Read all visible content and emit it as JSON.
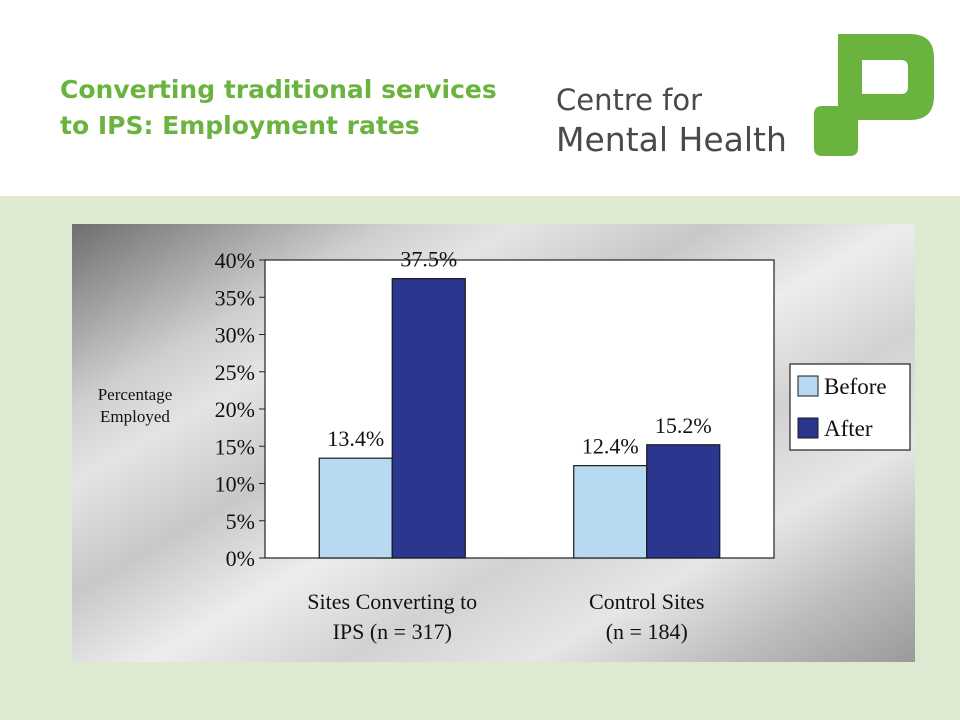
{
  "header": {
    "title_line1": "Converting traditional services",
    "title_line2": "to IPS: Employment rates",
    "logo_line1": "Centre for",
    "logo_line2": "Mental Health",
    "brand_color": "#6bb33f"
  },
  "colors": {
    "content_background": "#dee9d2",
    "before": "#b8d9f2",
    "after": "#2b368f"
  },
  "chart_data": {
    "type": "bar",
    "categories": [
      [
        "Sites Converting to",
        "IPS (n = 317)"
      ],
      [
        "Control Sites",
        "(n = 184)"
      ]
    ],
    "series": [
      {
        "name": "Before",
        "values": [
          13.4,
          12.4
        ],
        "labels": [
          "13.4%",
          "12.4%"
        ]
      },
      {
        "name": "After",
        "values": [
          37.5,
          15.2
        ],
        "labels": [
          "37.5%",
          "15.2%"
        ]
      }
    ],
    "ylabel": [
      "Percentage",
      "Employed"
    ],
    "ylim": [
      0,
      40
    ],
    "yticks": [
      "0%",
      "5%",
      "10%",
      "15%",
      "20%",
      "25%",
      "30%",
      "35%",
      "40%"
    ],
    "legend_position": "right",
    "grid": false
  }
}
